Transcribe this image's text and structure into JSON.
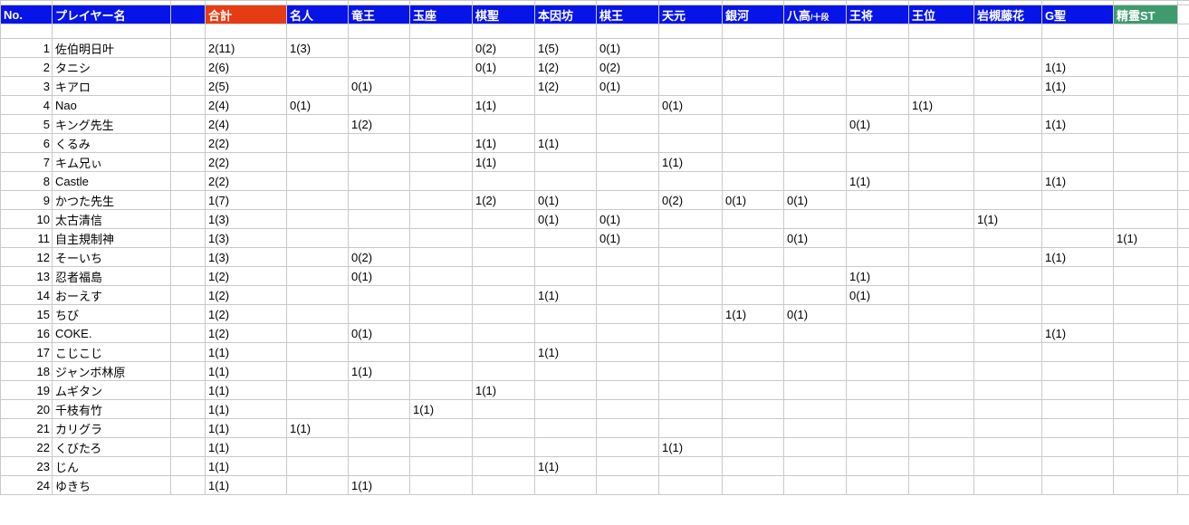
{
  "sheet": {
    "columns": [
      {
        "key": "no",
        "label": "No."
      },
      {
        "key": "player",
        "label": "プレイヤー名"
      },
      {
        "key": "spacer",
        "label": ""
      },
      {
        "key": "total",
        "label": "合計"
      },
      {
        "key": "meijin",
        "label": "名人"
      },
      {
        "key": "ryuuou",
        "label": "竜王"
      },
      {
        "key": "gyokuza",
        "label": "玉座"
      },
      {
        "key": "kisei",
        "label": "棋聖"
      },
      {
        "key": "honinbou",
        "label": "本因坊"
      },
      {
        "key": "kiou",
        "label": "棋王"
      },
      {
        "key": "tengen",
        "label": "天元"
      },
      {
        "key": "ginga",
        "label": "銀河"
      },
      {
        "key": "hachikou",
        "label": "八高",
        "sublabel": "/十段"
      },
      {
        "key": "oushou",
        "label": "王将"
      },
      {
        "key": "oui",
        "label": "王位"
      },
      {
        "key": "iwatsukitouka",
        "label": "岩槻藤花"
      },
      {
        "key": "gsei",
        "label": "G聖"
      },
      {
        "key": "seireist",
        "label": "精霊ST"
      }
    ],
    "rows": [
      {
        "no": "1",
        "player": "佐伯明日叶",
        "total": "2(11)",
        "meijin": "1(3)",
        "kisei": "0(2)",
        "honinbou": "1(5)",
        "kiou": "0(1)"
      },
      {
        "no": "2",
        "player": "タニシ",
        "total": "2(6)",
        "kisei": "0(1)",
        "honinbou": "1(2)",
        "kiou": "0(2)",
        "gsei": "1(1)"
      },
      {
        "no": "3",
        "player": "キアロ",
        "total": "2(5)",
        "ryuuou": "0(1)",
        "honinbou": "1(2)",
        "kiou": "0(1)",
        "gsei": "1(1)"
      },
      {
        "no": "4",
        "player": "Nao",
        "total": "2(4)",
        "meijin": "0(1)",
        "kisei": "1(1)",
        "tengen": "0(1)",
        "oui": "1(1)"
      },
      {
        "no": "5",
        "player": "キング先生",
        "total": "2(4)",
        "ryuuou": "1(2)",
        "oushou": "0(1)",
        "gsei": "1(1)"
      },
      {
        "no": "6",
        "player": "くるみ",
        "total": "2(2)",
        "kisei": "1(1)",
        "honinbou": "1(1)"
      },
      {
        "no": "7",
        "player": "キム兄ぃ",
        "total": "2(2)",
        "kisei": "1(1)",
        "tengen": "1(1)"
      },
      {
        "no": "8",
        "player": "Castle",
        "total": "2(2)",
        "oushou": "1(1)",
        "gsei": "1(1)"
      },
      {
        "no": "9",
        "player": "かつた先生",
        "total": "1(7)",
        "kisei": "1(2)",
        "honinbou": "0(1)",
        "tengen": "0(2)",
        "ginga": "0(1)",
        "hachikou": "0(1)"
      },
      {
        "no": "10",
        "player": "太古清信",
        "total": "1(3)",
        "honinbou": "0(1)",
        "kiou": "0(1)",
        "iwatsukitouka": "1(1)"
      },
      {
        "no": "11",
        "player": "自主規制神",
        "total": "1(3)",
        "kiou": "0(1)",
        "hachikou": "0(1)",
        "seireist": "1(1)"
      },
      {
        "no": "12",
        "player": "そーいち",
        "total": "1(3)",
        "ryuuou": "0(2)",
        "gsei": "1(1)"
      },
      {
        "no": "13",
        "player": "忍者福島",
        "total": "1(2)",
        "ryuuou": "0(1)",
        "oushou": "1(1)"
      },
      {
        "no": "14",
        "player": "おーえす",
        "total": "1(2)",
        "honinbou": "1(1)",
        "oushou": "0(1)"
      },
      {
        "no": "15",
        "player": "ちび",
        "total": "1(2)",
        "ginga": "1(1)",
        "hachikou": "0(1)"
      },
      {
        "no": "16",
        "player": "COKE.",
        "total": "1(2)",
        "ryuuou": "0(1)",
        "gsei": "1(1)"
      },
      {
        "no": "17",
        "player": "こじこじ",
        "total": "1(1)",
        "honinbou": "1(1)"
      },
      {
        "no": "18",
        "player": "ジャンボ林原",
        "total": "1(1)",
        "ryuuou": "1(1)"
      },
      {
        "no": "19",
        "player": "ムギタン",
        "total": "1(1)",
        "kisei": "1(1)"
      },
      {
        "no": "20",
        "player": "千枝有竹",
        "total": "1(1)",
        "gyokuza": "1(1)"
      },
      {
        "no": "21",
        "player": "カリグラ",
        "total": "1(1)",
        "meijin": "1(1)"
      },
      {
        "no": "22",
        "player": "くびたろ",
        "total": "1(1)",
        "tengen": "1(1)"
      },
      {
        "no": "23",
        "player": "じん",
        "total": "1(1)",
        "honinbou": "1(1)"
      },
      {
        "no": "24",
        "player": "ゆきち",
        "total": "1(1)",
        "ryuuou": "1(1)"
      }
    ]
  },
  "colors": {
    "header_bg": "#0714e8",
    "total_bg": "#e63c13",
    "seirei_bg": "#3d9b6e",
    "header_text": "#ffffff",
    "grid": "#c9c9c9",
    "cell_text": "#000000"
  }
}
